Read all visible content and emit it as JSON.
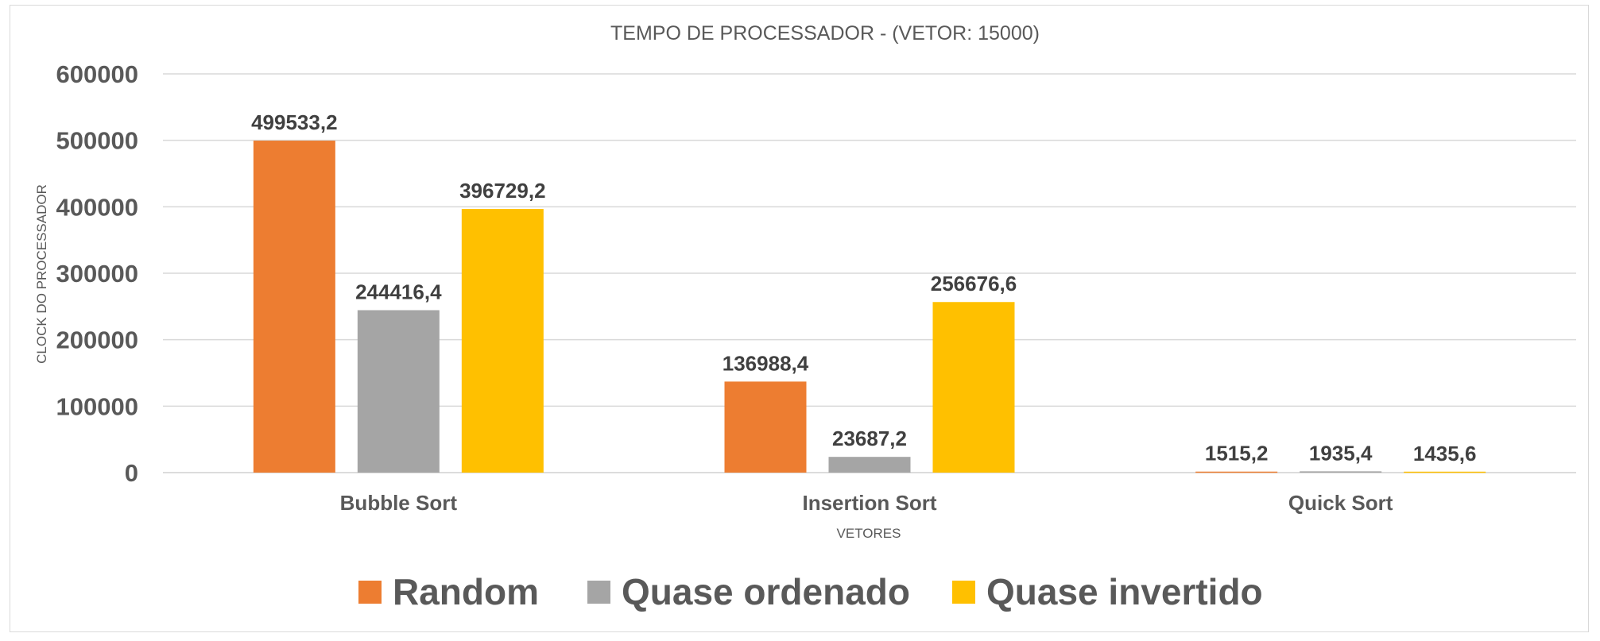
{
  "chart_data": {
    "type": "bar",
    "title": "TEMPO DE PROCESSADOR - (VETOR: 15000)",
    "xlabel": "VETORES",
    "ylabel": "CLOCK DO PROCESSADOR",
    "categories": [
      "Bubble Sort",
      "Insertion Sort",
      "Quick Sort"
    ],
    "series": [
      {
        "name": "Random",
        "color": "#ED7D31",
        "values": [
          499533.2,
          136988.4,
          1515.2
        ],
        "labels": [
          "499533,2",
          "136988,4",
          "1515,2"
        ]
      },
      {
        "name": "Quase ordenado",
        "color": "#A5A5A5",
        "values": [
          244416.4,
          23687.2,
          1935.4
        ],
        "labels": [
          "244416,4",
          "23687,2",
          "1935,4"
        ]
      },
      {
        "name": "Quase invertido",
        "color": "#FFC000",
        "values": [
          396729.2,
          256676.6,
          1435.6
        ],
        "labels": [
          "396729,2",
          "256676,6",
          "1435,6"
        ]
      }
    ],
    "yticks": [
      "0",
      "100000",
      "200000",
      "300000",
      "400000",
      "500000",
      "600000"
    ],
    "ylim": [
      0,
      600000
    ],
    "grid": true,
    "legend_position": "bottom"
  }
}
